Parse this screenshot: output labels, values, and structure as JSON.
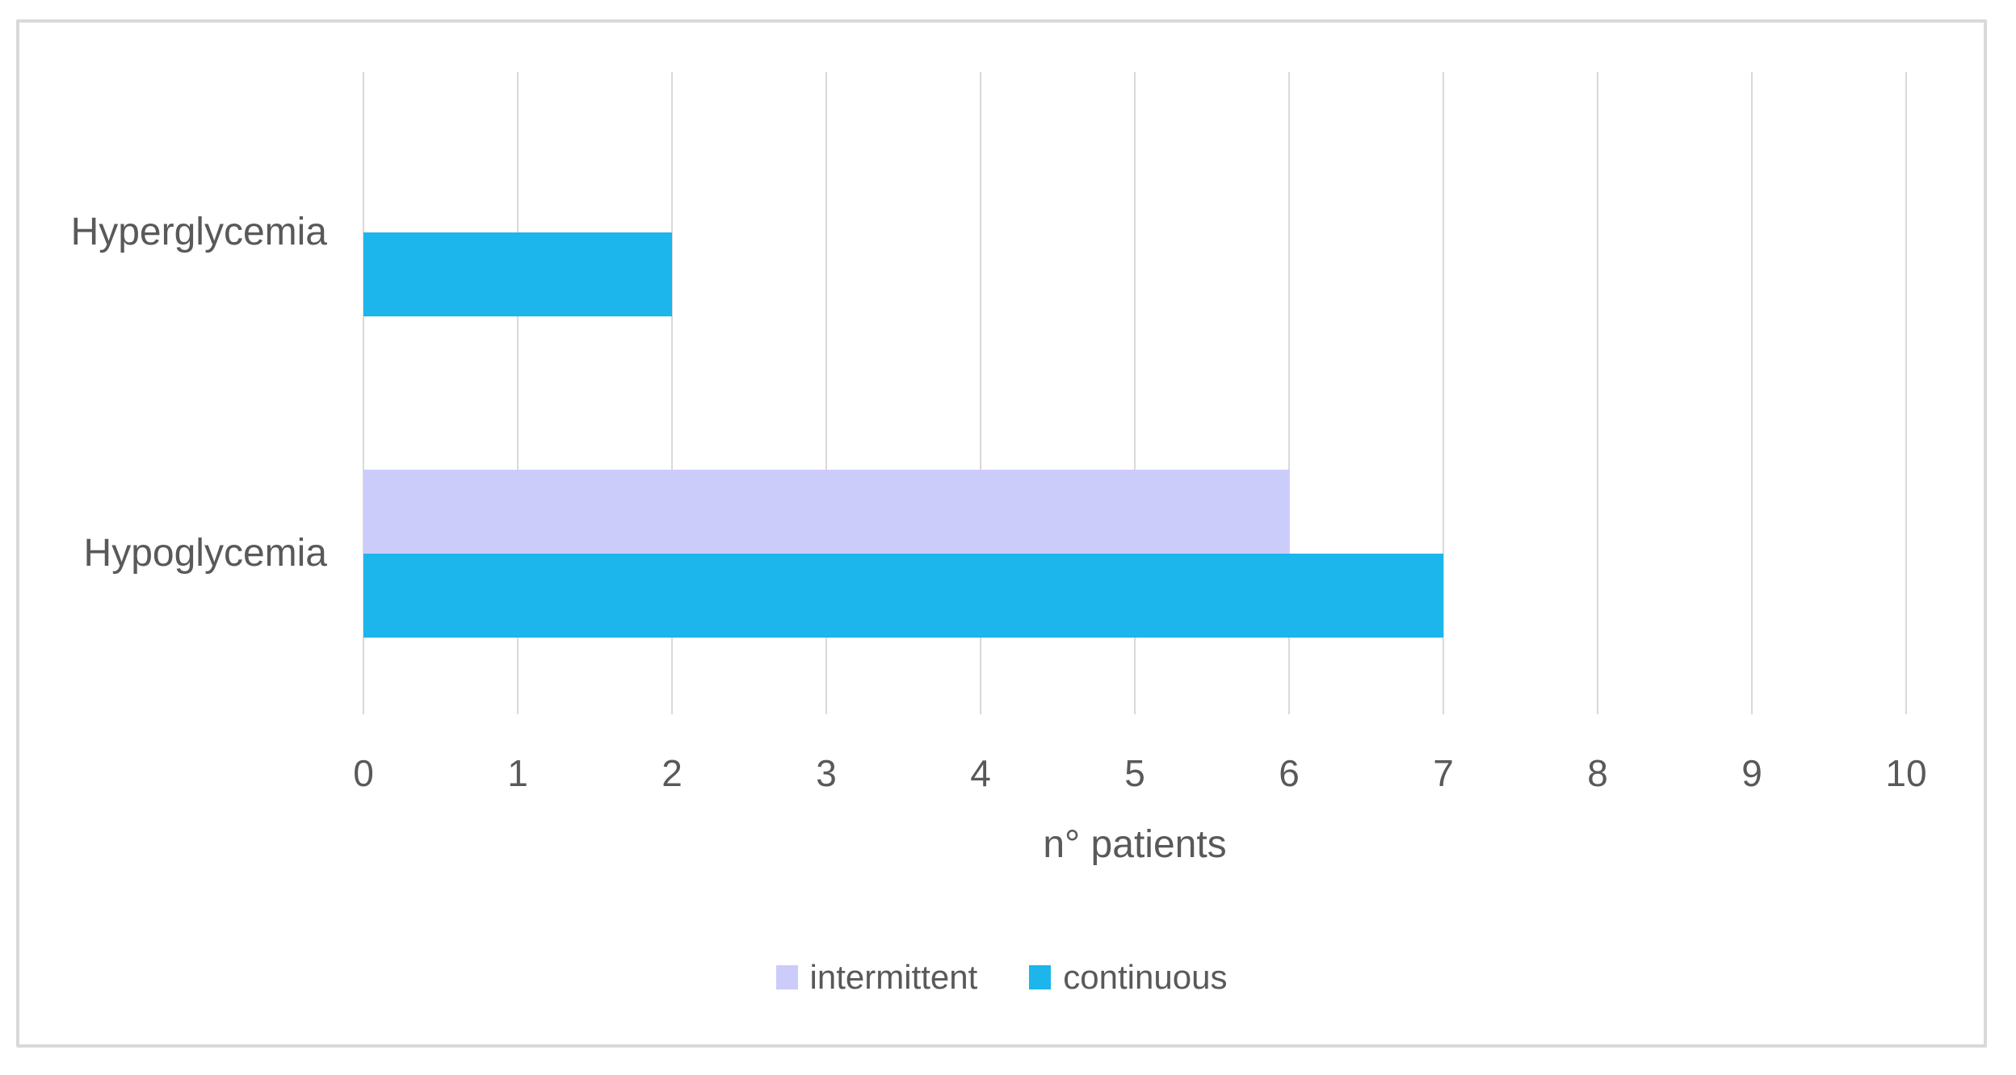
{
  "chart_data": {
    "type": "bar",
    "orientation": "horizontal",
    "title": "",
    "categories": [
      "Hyperglycemia",
      "Hypoglycemia"
    ],
    "series": [
      {
        "name": "intermittent",
        "color": "#CBCCFA",
        "values": [
          0,
          6
        ]
      },
      {
        "name": "continuous",
        "color": "#1CB5EC",
        "values": [
          2,
          7
        ]
      }
    ],
    "xlabel": "n° patients",
    "ylabel": "",
    "xticks": [
      "0",
      "1",
      "2",
      "3",
      "4",
      "5",
      "6",
      "7",
      "8",
      "9",
      "10"
    ],
    "xlim": [
      0,
      10
    ],
    "grid": "vertical-major",
    "legend_position": "bottom-center",
    "colors": {
      "text": "#595959",
      "gridline": "#D9D9D9",
      "frame_border": "#D9D9D9",
      "background": "#FFFFFF"
    }
  }
}
